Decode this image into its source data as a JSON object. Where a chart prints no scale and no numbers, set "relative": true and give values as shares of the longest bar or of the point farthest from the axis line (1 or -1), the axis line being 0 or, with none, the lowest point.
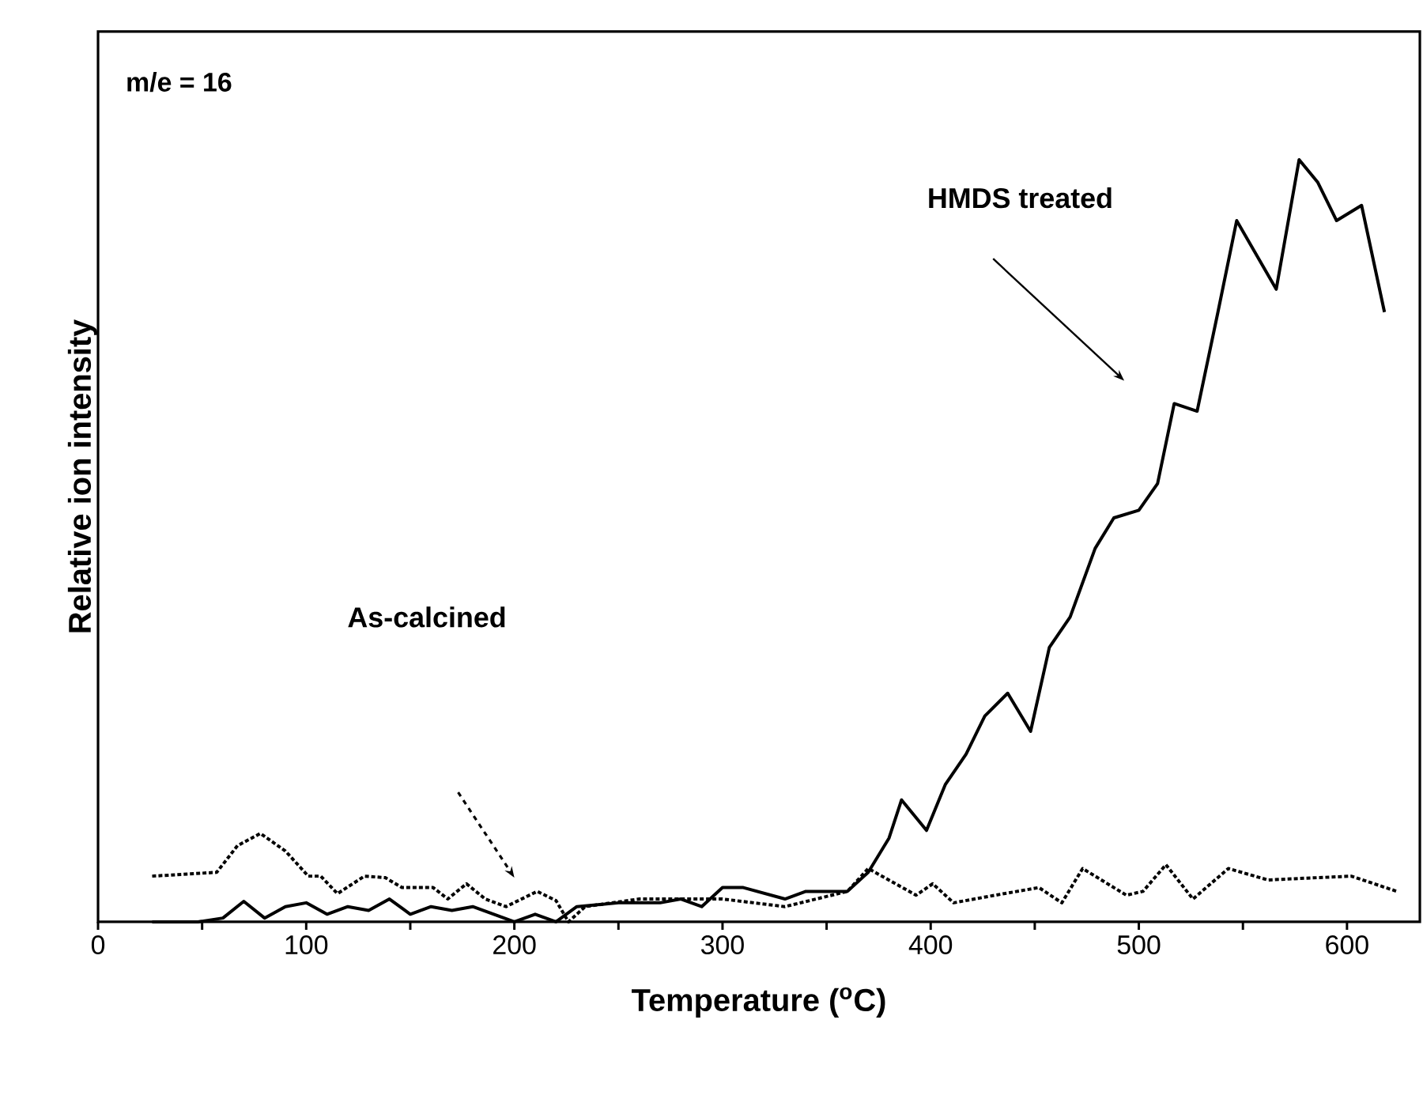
{
  "chart_data": {
    "type": "line",
    "relative": true,
    "xlabel": "Temperature ($^{o}$C)",
    "ylabel": "Relative ion intensity",
    "annotations": [
      "m/e = 16",
      "HMDS treated",
      "As-calcined"
    ],
    "xlim": [
      0,
      635
    ],
    "xticks": [
      0,
      {
        "value": 50,
        "label": null
      },
      100,
      {
        "value": 150,
        "label": null
      },
      200,
      {
        "value": 250,
        "label": null
      },
      300,
      {
        "value": 350,
        "label": null
      },
      400,
      {
        "value": 450,
        "label": null
      },
      500,
      {
        "value": 550,
        "label": null
      },
      600
    ],
    "series": [
      {
        "color": "#000000",
        "line_style": "solid",
        "x": [
          26,
          48,
          60,
          70,
          80,
          90,
          100,
          110,
          120,
          130,
          140,
          150,
          160,
          170,
          180,
          190,
          200,
          210,
          220,
          230,
          250,
          270,
          280,
          290,
          300,
          310,
          330,
          340,
          360,
          370,
          380,
          386,
          398,
          407,
          417,
          426,
          437,
          448,
          457,
          467,
          479,
          488,
          500,
          509,
          517,
          528,
          538,
          547,
          566,
          577,
          586,
          595,
          607,
          618
        ],
        "values": [
          0,
          0,
          0.005,
          0.027,
          0.005,
          0.02,
          0.025,
          0.01,
          0.02,
          0.015,
          0.03,
          0.01,
          0.02,
          0.015,
          0.02,
          0.01,
          0,
          0.01,
          0,
          0.02,
          0.025,
          0.025,
          0.03,
          0.02,
          0.045,
          0.045,
          0.03,
          0.04,
          0.04,
          0.065,
          0.11,
          0.16,
          0.12,
          0.18,
          0.22,
          0.27,
          0.3,
          0.25,
          0.36,
          0.4,
          0.49,
          0.53,
          0.54,
          0.575,
          0.68,
          0.67,
          0.8,
          0.92,
          0.83,
          1.0,
          0.97,
          0.92,
          0.94,
          0.8
        ]
      },
      {
        "color": "#000000",
        "line_style": "dotted",
        "x": [
          26,
          57,
          67,
          78,
          90,
          101,
          107,
          115,
          128,
          138,
          146,
          161,
          168,
          177,
          186,
          196,
          211,
          220,
          226,
          234,
          260,
          300,
          330,
          360,
          370,
          393,
          401,
          411,
          431,
          452,
          463,
          473,
          494,
          502,
          513,
          526,
          543,
          562,
          602,
          624
        ],
        "values": [
          0.06,
          0.065,
          0.1,
          0.116,
          0.093,
          0.06,
          0.06,
          0.037,
          0.06,
          0.058,
          0.045,
          0.045,
          0.03,
          0.05,
          0.03,
          0.02,
          0.04,
          0.028,
          0,
          0.02,
          0.03,
          0.03,
          0.02,
          0.04,
          0.07,
          0.035,
          0.05,
          0.025,
          0.035,
          0.045,
          0.025,
          0.07,
          0.035,
          0.04,
          0.075,
          0.03,
          0.07,
          0.055,
          0.06,
          0.04
        ]
      }
    ]
  }
}
